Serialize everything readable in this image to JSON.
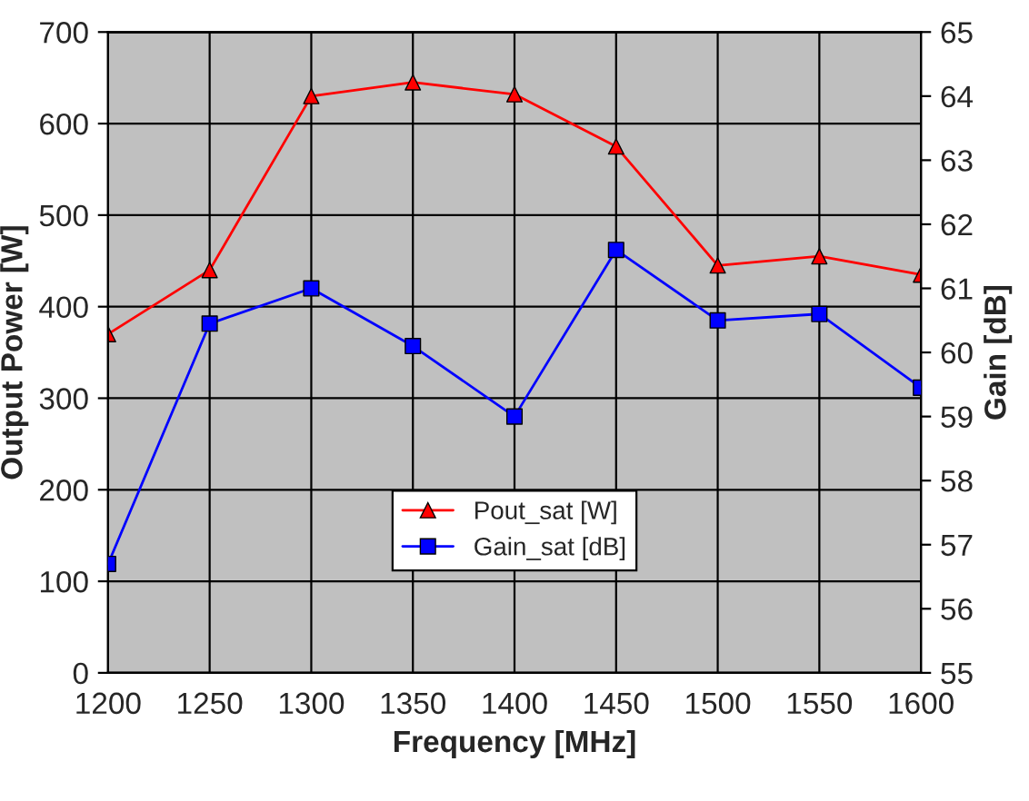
{
  "chart_data": {
    "type": "line",
    "xlabel": "Frequency [MHz]",
    "ylabel": "Output Power [W]",
    "y2label": "Gain [dB]",
    "x": [
      1200,
      1250,
      1300,
      1350,
      1400,
      1450,
      1500,
      1550,
      1600
    ],
    "series": [
      {
        "name": "Pout_sat [W]",
        "color": "#ff0000",
        "marker": "triangle",
        "values": [
          370,
          440,
          630,
          645,
          632,
          575,
          445,
          455,
          435
        ]
      },
      {
        "name": "Gain_sat [dB]",
        "color": "#0000ff",
        "marker": "square",
        "axis": "y2",
        "values": [
          56.7,
          60.45,
          61.0,
          60.1,
          59.0,
          61.6,
          60.5,
          60.6,
          59.45
        ]
      }
    ],
    "xlim": [
      1200,
      1600
    ],
    "xticks": [
      1200,
      1250,
      1300,
      1350,
      1400,
      1450,
      1500,
      1550,
      1600
    ],
    "ylim": [
      0,
      700
    ],
    "yticks": [
      0,
      100,
      200,
      300,
      400,
      500,
      600,
      700
    ],
    "y2lim": [
      55,
      65
    ],
    "y2ticks": [
      55,
      56,
      57,
      58,
      59,
      60,
      61,
      62,
      63,
      64,
      65
    ],
    "grid": true,
    "legend": "bottom",
    "line_style": "solid"
  }
}
